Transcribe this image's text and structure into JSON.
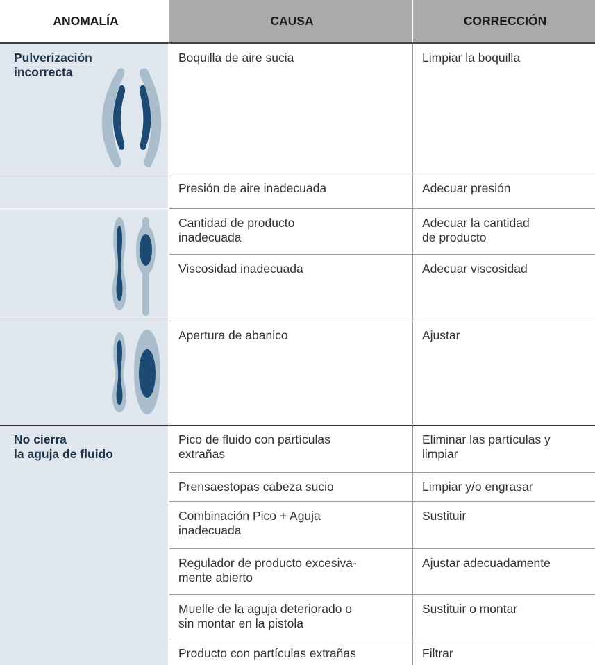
{
  "header": {
    "columns": [
      "ANOMALÍA",
      "CAUSA",
      "CORRECCIÓN"
    ]
  },
  "anomalies": [
    [
      "Pulverización",
      "incorrecta"
    ],
    [
      "No cierra",
      "la aguja de fluido"
    ]
  ],
  "rows": [
    {
      "cause": [
        "Boquilla de aire sucia"
      ],
      "correction": [
        "Limpiar la boquilla"
      ]
    },
    {
      "cause": [
        "Presión de aire inadecuada"
      ],
      "correction": [
        "Adecuar presión"
      ]
    },
    {
      "cause": [
        "Cantidad de producto",
        "inadecuada"
      ],
      "correction": [
        "Adecuar la cantidad",
        "de producto"
      ]
    },
    {
      "cause": [
        "Viscosidad inadecuada"
      ],
      "correction": [
        "Adecuar viscosidad"
      ]
    },
    {
      "cause": [
        "Apertura de abanico"
      ],
      "correction": [
        "Ajustar"
      ]
    },
    {
      "cause": [
        "Pico de fluido con partículas",
        "extrañas"
      ],
      "correction": [
        "Eliminar las partículas y",
        "limpiar"
      ]
    },
    {
      "cause": [
        "Prensaestopas cabeza sucio"
      ],
      "correction": [
        "Limpiar y/o engrasar"
      ]
    },
    {
      "cause": [
        "Combinación Pico + Aguja",
        "inadecuada"
      ],
      "correction": [
        "Sustituir"
      ]
    },
    {
      "cause": [
        "Regulador de producto excesiva-",
        "mente abierto"
      ],
      "correction": [
        "Ajustar adecuadamente"
      ]
    },
    {
      "cause": [
        "Muelle de la aguja deteriorado o",
        "sin montar en la pistola"
      ],
      "correction": [
        "Sustituir o montar"
      ]
    },
    {
      "cause": [
        "Producto con partículas extrañas"
      ],
      "correction": [
        "Filtrar"
      ]
    }
  ]
}
